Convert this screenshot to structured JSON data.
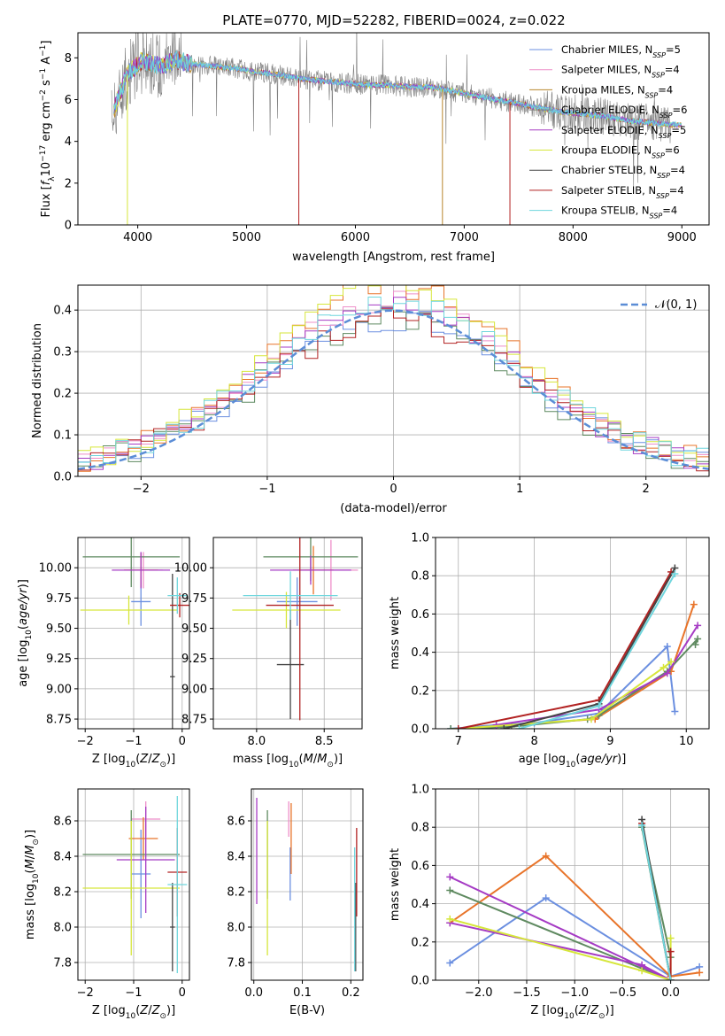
{
  "figure": {
    "title": "PLATE=0770, MJD=52282, FIBERID=0024, z=0.022"
  },
  "colors": {
    "Chabrier MILES": "#6b8fe0",
    "Salpeter MILES": "#ee8fc9",
    "Kroupa MILES": "#b8862b",
    "Chabrier ELODIE": "#7f7f7f",
    "Salpeter ELODIE": "#a53bc4",
    "Kroupa ELODIE": "#d6e63a",
    "Chabrier STELIB": "#444444",
    "Salpeter STELIB": "#b22222",
    "Kroupa STELIB": "#6fd6dd",
    "normal_curve": "#5b8dd6",
    "orange": "#e8742a",
    "green": "#5f8a60",
    "grid": "#b0b0b0"
  },
  "chart_data": [
    {
      "id": "spectrum",
      "type": "line",
      "title": "PLATE=0770, MJD=52282, FIBERID=0024, z=0.022",
      "xlabel": "wavelength [Angstrom, rest frame]",
      "ylabel": "Flux [f_λ 10^-17 erg cm^-2 s^-1 A^-1]",
      "xlim": [
        3450,
        9250
      ],
      "ylim": [
        0,
        9.2
      ],
      "xticks": [
        4000,
        5000,
        6000,
        7000,
        8000,
        9000
      ],
      "yticks": [
        0,
        2,
        4,
        6,
        8
      ],
      "grid": false,
      "legend_position": "top-right",
      "data_envelope": {
        "x": [
          3760,
          3900,
          4050,
          4200,
          4350,
          4500,
          4700,
          4900,
          5100,
          5300,
          5500,
          5700,
          5900,
          6100,
          6300,
          6500,
          6700,
          6900,
          7100,
          7300,
          7500,
          7700,
          7900,
          8100,
          8300,
          8500,
          8700,
          8900
        ],
        "y": [
          5.2,
          7.2,
          7.9,
          7.6,
          7.9,
          7.7,
          7.6,
          7.5,
          7.3,
          7.2,
          7.0,
          6.9,
          6.8,
          6.7,
          6.7,
          6.6,
          6.6,
          6.4,
          6.2,
          6.0,
          5.8,
          5.6,
          5.4,
          5.3,
          5.2,
          5.0,
          4.9,
          4.8
        ]
      },
      "legend": [
        {
          "label": "Chabrier MILES, N",
          "sub": "SSP",
          "suffix": "=5",
          "color": "#6b8fe0"
        },
        {
          "label": "Salpeter MILES, N",
          "sub": "SSP",
          "suffix": "=4",
          "color": "#ee8fc9"
        },
        {
          "label": "Kroupa MILES, N",
          "sub": "SSP",
          "suffix": "=4",
          "color": "#b8862b"
        },
        {
          "label": "Chabrier ELODIE, N",
          "sub": "SSP",
          "suffix": "=6",
          "color": "#7f7f7f"
        },
        {
          "label": "Salpeter ELODIE, N",
          "sub": "SSP",
          "suffix": "=5",
          "color": "#a53bc4"
        },
        {
          "label": "Kroupa ELODIE, N",
          "sub": "SSP",
          "suffix": "=6",
          "color": "#d6e63a"
        },
        {
          "label": "Chabrier STELIB, N",
          "sub": "SSP",
          "suffix": "=4",
          "color": "#444444"
        },
        {
          "label": "Salpeter STELIB, N",
          "sub": "SSP",
          "suffix": "=4",
          "color": "#b22222"
        },
        {
          "label": "Kroupa STELIB, N",
          "sub": "SSP",
          "suffix": "=4",
          "color": "#6fd6dd"
        }
      ]
    },
    {
      "id": "residuals",
      "type": "area",
      "xlabel": "(data-model)/error",
      "ylabel": "Normed distribution",
      "xlim": [
        -2.5,
        2.5
      ],
      "ylim": [
        0,
        0.46
      ],
      "xticks": [
        -2,
        -1,
        0,
        1,
        2
      ],
      "yticks": [
        0.0,
        0.1,
        0.2,
        0.3,
        0.4
      ],
      "grid": true,
      "legend_position": "top-right",
      "legend_label": "𝒩(0, 1)",
      "bin_width": 0.1
    },
    {
      "id": "age_vs_Z",
      "type": "scatter",
      "xlabel": "Z [log10(Z/Z⊙)]",
      "ylabel": "age [log10(age/yr)]",
      "xlim": [
        -2.15,
        0.15
      ],
      "ylim": [
        8.67,
        10.25
      ],
      "xticks": [
        -2,
        -1,
        0
      ],
      "yticks": [
        8.75,
        9.0,
        9.25,
        9.5,
        9.75,
        10.0
      ],
      "grid": true,
      "points": [
        {
          "x": -0.85,
          "y": 9.72,
          "xerr": 0.2,
          "yerr": 0.2,
          "color": "#6b8fe0"
        },
        {
          "x": -0.8,
          "y": 9.98,
          "xerr": 0.4,
          "yerr": 0.15,
          "color": "#ee8fc9"
        },
        {
          "x": -0.85,
          "y": 9.98,
          "xerr": 0.35,
          "yerr": 0.14,
          "color": "#e8742a"
        },
        {
          "x": -1.05,
          "y": 10.09,
          "xerr": 1.0,
          "yerr": 0.25,
          "color": "#5f8a60"
        },
        {
          "x": -0.85,
          "y": 9.98,
          "xerr": 0.6,
          "yerr": 0.15,
          "color": "#a53bc4"
        },
        {
          "x": -1.1,
          "y": 9.65,
          "xerr": 1.0,
          "yerr": 0.12,
          "color": "#d6e63a"
        },
        {
          "x": -0.2,
          "y": 9.1,
          "xerr": 0.05,
          "yerr": 0.85,
          "color": "#444444"
        },
        {
          "x": -0.05,
          "y": 9.69,
          "xerr": 0.2,
          "yerr": 0.1,
          "color": "#b22222"
        },
        {
          "x": -0.1,
          "y": 9.77,
          "xerr": 0.2,
          "yerr": 0.15,
          "color": "#6fd6dd"
        }
      ]
    },
    {
      "id": "age_vs_mass",
      "type": "scatter",
      "xlabel": "mass [log10(M/M⊙)]",
      "ylabel": "",
      "xlim": [
        7.68,
        8.78
      ],
      "ylim": [
        8.67,
        10.25
      ],
      "xticks": [
        8.0,
        8.5
      ],
      "yticks": [
        8.75,
        9.0,
        9.25,
        9.5,
        9.75,
        10.0
      ],
      "grid": true,
      "points": [
        {
          "x": 8.3,
          "y": 9.72,
          "xerr": 0.15,
          "yerr": 0.2,
          "color": "#6b8fe0"
        },
        {
          "x": 8.55,
          "y": 9.98,
          "xerr": 0.2,
          "yerr": 0.25,
          "color": "#ee8fc9"
        },
        {
          "x": 8.42,
          "y": 9.98,
          "xerr": 0.15,
          "yerr": 0.2,
          "color": "#e8742a"
        },
        {
          "x": 8.4,
          "y": 10.09,
          "xerr": 0.35,
          "yerr": 0.2,
          "color": "#5f8a60"
        },
        {
          "x": 8.4,
          "y": 9.98,
          "xerr": 0.3,
          "yerr": 0.12,
          "color": "#a53bc4"
        },
        {
          "x": 8.22,
          "y": 9.65,
          "xerr": 0.4,
          "yerr": 0.15,
          "color": "#d6e63a"
        },
        {
          "x": 8.25,
          "y": 9.2,
          "xerr": 0.1,
          "yerr": 0.45,
          "color": "#444444"
        },
        {
          "x": 8.32,
          "y": 9.69,
          "xerr": 0.25,
          "yerr": 0.95,
          "color": "#b22222"
        },
        {
          "x": 8.25,
          "y": 9.77,
          "xerr": 0.35,
          "yerr": 0.2,
          "color": "#6fd6dd"
        }
      ]
    },
    {
      "id": "massweight_vs_age",
      "type": "line",
      "xlabel": "age [log10(age/yr)]",
      "ylabel": "mass weight",
      "xlim": [
        6.7,
        10.3
      ],
      "ylim": [
        0,
        1.0
      ],
      "xticks": [
        7,
        8,
        9,
        10
      ],
      "yticks": [
        0.0,
        0.2,
        0.4,
        0.6,
        0.8,
        1.0
      ],
      "grid": true,
      "series": [
        {
          "color": "#6b8fe0",
          "x": [
            6.9,
            7.5,
            8.0,
            8.85,
            9.75,
            9.85
          ],
          "y": [
            0.0,
            0.02,
            0.03,
            0.08,
            0.43,
            0.09
          ]
        },
        {
          "color": "#e8742a",
          "x": [
            7.0,
            8.8,
            9.8,
            10.1
          ],
          "y": [
            0.0,
            0.05,
            0.3,
            0.65
          ]
        },
        {
          "color": "#5f8a60",
          "x": [
            6.9,
            7.7,
            8.7,
            8.85,
            9.75,
            10.15,
            10.12
          ],
          "y": [
            0.0,
            0.01,
            0.05,
            0.07,
            0.3,
            0.47,
            0.44
          ]
        },
        {
          "color": "#a53bc4",
          "x": [
            7.5,
            8.85,
            9.75,
            10.15
          ],
          "y": [
            0.02,
            0.1,
            0.29,
            0.54
          ]
        },
        {
          "color": "#d6e63a",
          "x": [
            7.0,
            8.75,
            9.7,
            9.8
          ],
          "y": [
            0.0,
            0.05,
            0.32,
            0.35
          ]
        },
        {
          "color": "#b22222",
          "x": [
            7.0,
            8.85,
            9.8
          ],
          "y": [
            0.0,
            0.15,
            0.82
          ]
        },
        {
          "color": "#444444",
          "x": [
            7.6,
            8.85,
            9.85
          ],
          "y": [
            0.0,
            0.13,
            0.84
          ]
        },
        {
          "color": "#6fd6dd",
          "x": [
            7.8,
            8.85,
            9.85
          ],
          "y": [
            0.0,
            0.12,
            0.81
          ]
        }
      ]
    },
    {
      "id": "mass_vs_Z",
      "type": "scatter",
      "xlabel": "Z [log10(Z/Z⊙)]",
      "ylabel": "mass [log10(M/M⊙)]",
      "xlim": [
        -2.15,
        0.15
      ],
      "ylim": [
        7.7,
        8.78
      ],
      "xticks": [
        -2,
        -1,
        0
      ],
      "yticks": [
        7.8,
        8.0,
        8.2,
        8.4,
        8.6
      ],
      "grid": true,
      "points": [
        {
          "x": -0.85,
          "y": 8.3,
          "xerr": 0.2,
          "yerr": 0.25,
          "color": "#6b8fe0"
        },
        {
          "x": -0.75,
          "y": 8.61,
          "xerr": 0.3,
          "yerr": 0.1,
          "color": "#ee8fc9"
        },
        {
          "x": -0.8,
          "y": 8.5,
          "xerr": 0.3,
          "yerr": 0.12,
          "color": "#e8742a"
        },
        {
          "x": -1.05,
          "y": 8.41,
          "xerr": 1.0,
          "yerr": 0.25,
          "color": "#5f8a60"
        },
        {
          "x": -0.75,
          "y": 8.38,
          "xerr": 0.6,
          "yerr": 0.3,
          "color": "#a53bc4"
        },
        {
          "x": -1.05,
          "y": 8.22,
          "xerr": 1.0,
          "yerr": 0.38,
          "color": "#d6e63a"
        },
        {
          "x": -0.2,
          "y": 8.0,
          "xerr": 0.05,
          "yerr": 0.25,
          "color": "#444444"
        },
        {
          "x": -0.1,
          "y": 8.31,
          "xerr": 0.2,
          "yerr": 0.25,
          "color": "#b22222"
        },
        {
          "x": -0.1,
          "y": 8.24,
          "xerr": 0.2,
          "yerr": 0.5,
          "color": "#6fd6dd"
        }
      ]
    },
    {
      "id": "mass_vs_EBV",
      "type": "scatter",
      "xlabel": "E(B-V)",
      "ylabel": "",
      "xlim": [
        -0.005,
        0.225
      ],
      "ylim": [
        7.7,
        8.78
      ],
      "xticks": [
        0.0,
        0.1,
        0.2
      ],
      "yticks": [
        7.8,
        8.0,
        8.2,
        8.4,
        8.6
      ],
      "grid": true,
      "points": [
        {
          "x": 0.075,
          "y": 8.3,
          "yerr": 0.15,
          "color": "#6b8fe0"
        },
        {
          "x": 0.072,
          "y": 8.61,
          "yerr": 0.1,
          "color": "#ee8fc9"
        },
        {
          "x": 0.077,
          "y": 8.5,
          "yerr": 0.2,
          "color": "#e8742a"
        },
        {
          "x": 0.028,
          "y": 8.41,
          "yerr": 0.25,
          "color": "#5f8a60"
        },
        {
          "x": 0.006,
          "y": 8.43,
          "yerr": 0.3,
          "color": "#a53bc4"
        },
        {
          "x": 0.028,
          "y": 8.22,
          "yerr": 0.38,
          "color": "#d6e63a"
        },
        {
          "x": 0.21,
          "y": 8.0,
          "yerr": 0.25,
          "color": "#444444"
        },
        {
          "x": 0.212,
          "y": 8.31,
          "yerr": 0.25,
          "color": "#b22222"
        },
        {
          "x": 0.208,
          "y": 8.1,
          "yerr": 0.35,
          "color": "#6fd6dd"
        }
      ]
    },
    {
      "id": "massweight_vs_Z",
      "type": "line",
      "xlabel": "Z [log10(Z/Z⊙)]",
      "ylabel": "mass weight",
      "xlim": [
        -2.45,
        0.4
      ],
      "ylim": [
        0,
        1.0
      ],
      "xticks": [
        -2.0,
        -1.5,
        -1.0,
        -0.5,
        0.0
      ],
      "yticks": [
        0.0,
        0.2,
        0.4,
        0.6,
        0.8,
        1.0
      ],
      "grid": true,
      "series": [
        {
          "color": "#6b8fe0",
          "x": [
            -2.3,
            -1.3,
            0.0,
            0.3
          ],
          "y": [
            0.09,
            0.43,
            0.02,
            0.07
          ]
        },
        {
          "color": "#e8742a",
          "x": [
            -2.3,
            -1.3,
            0.0,
            0.3
          ],
          "y": [
            0.3,
            0.65,
            0.02,
            0.04
          ]
        },
        {
          "color": "#5f8a60",
          "x": [
            -2.3,
            0.0,
            -0.3,
            0.0
          ],
          "y": [
            0.47,
            0.0,
            0.8,
            0.12
          ]
        },
        {
          "color": "#a53bc4",
          "x": [
            -2.3,
            -0.3,
            0.0,
            -2.3
          ],
          "y": [
            0.3,
            0.08,
            0.0,
            0.54
          ]
        },
        {
          "color": "#d6e63a",
          "x": [
            -2.3,
            -0.3,
            0.0,
            0.0
          ],
          "y": [
            0.32,
            0.05,
            0.0,
            0.22
          ]
        },
        {
          "color": "#b22222",
          "x": [
            -0.3,
            0.0,
            0.0
          ],
          "y": [
            0.82,
            0.0,
            0.15
          ]
        },
        {
          "color": "#444444",
          "x": [
            -0.3,
            0.0
          ],
          "y": [
            0.84,
            0.0
          ]
        },
        {
          "color": "#6fd6dd",
          "x": [
            -0.3,
            0.0
          ],
          "y": [
            0.81,
            0.0
          ]
        }
      ]
    }
  ]
}
